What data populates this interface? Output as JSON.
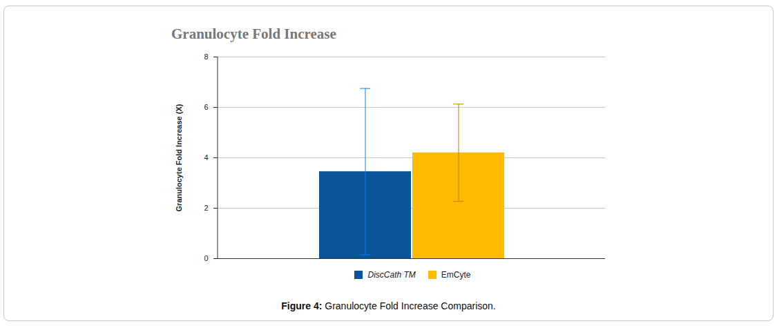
{
  "chart_data": {
    "type": "bar",
    "title": "Granulocyte Fold Increase",
    "ylabel": "Granulocyte Fold Increase (X)",
    "caption": "Figure 4: Granulocyte Fold Increase Comparison.",
    "categories": [
      "DiscCath TM",
      "EmCyte"
    ],
    "values": [
      3.45,
      4.2
    ],
    "errors": [
      3.3,
      1.93
    ],
    "colors": [
      "#0a5499",
      "#fdbb00"
    ],
    "ylim": [
      0,
      8
    ],
    "yticks": [
      0,
      2,
      4,
      6,
      8
    ],
    "grid": true,
    "legend": "bottom",
    "tick_labels": "y"
  }
}
